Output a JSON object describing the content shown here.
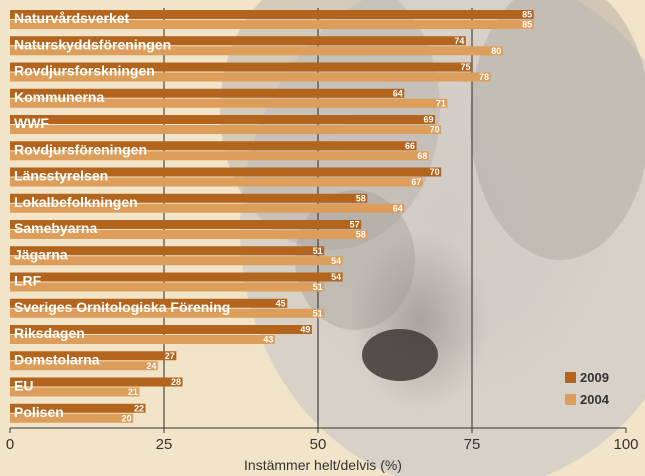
{
  "chart_data": {
    "type": "bar",
    "orientation": "horizontal",
    "categories": [
      "Naturvårdsverket",
      "Naturskyddsföreningen",
      "Rovdjursforskningen",
      "Kommunerna",
      "WWF",
      "Rovdjursföreningen",
      "Länsstyrelsen",
      "Lokalbefolkningen",
      "Samebyarna",
      "Jägarna",
      "LRF",
      "Sveriges Ornitologiska Förening",
      "Riksdagen",
      "Domstolarna",
      "EU",
      "Polisen"
    ],
    "series": [
      {
        "name": "2009",
        "color": "#b3651d",
        "values": [
          85,
          74,
          75,
          64,
          69,
          66,
          70,
          58,
          57,
          51,
          54,
          45,
          49,
          27,
          28,
          22
        ]
      },
      {
        "name": "2004",
        "color": "#dc9e5a",
        "values": [
          85,
          80,
          78,
          71,
          70,
          68,
          67,
          64,
          58,
          54,
          51,
          51,
          43,
          24,
          21,
          20
        ]
      }
    ],
    "xlabel": "Instämmer helt/delvis (%)",
    "xlim": [
      0,
      100
    ],
    "xticks": [
      "0",
      "25",
      "50",
      "75",
      "100"
    ],
    "grid": true,
    "legend_position": "bottom-right"
  }
}
